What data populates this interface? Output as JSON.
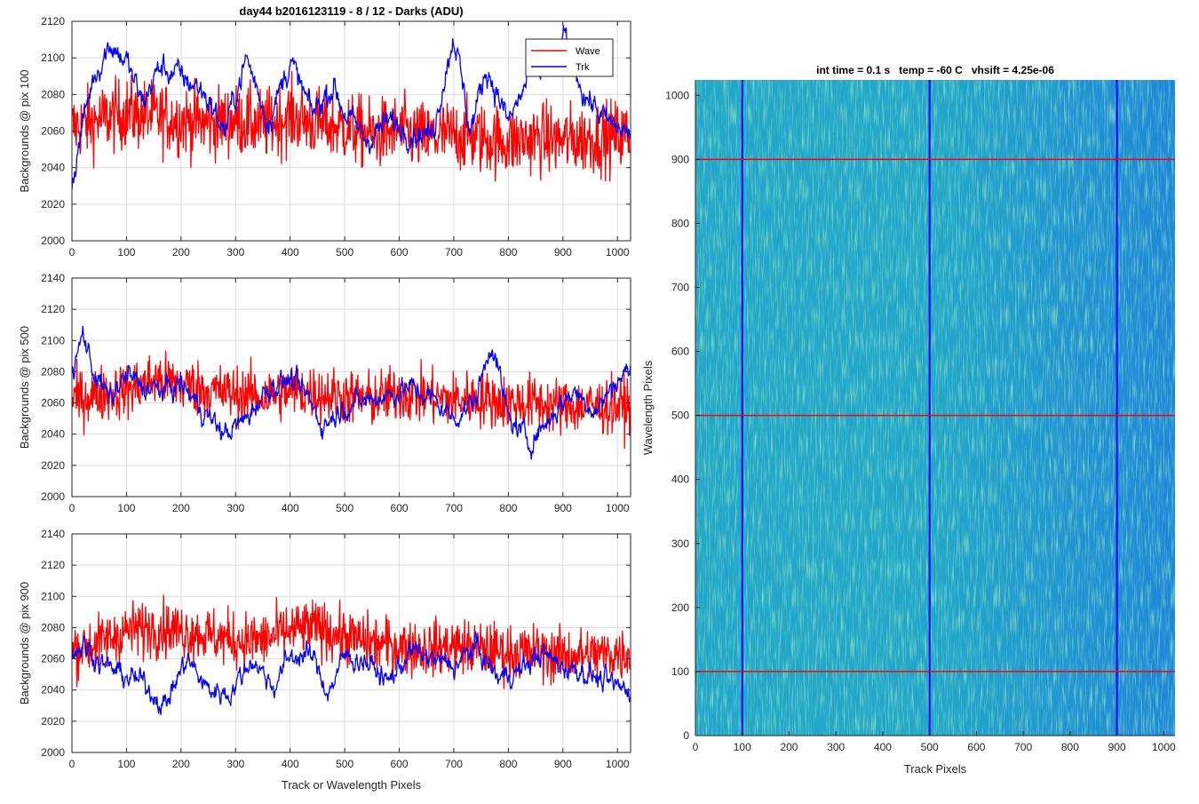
{
  "chart_data": [
    {
      "type": "line",
      "title": "day44 b2016123119 - 8 / 12 - Darks (ADU)",
      "ylabel": "Backgrounds @ pix 100",
      "xlabel": "",
      "xlim": [
        0,
        1024
      ],
      "ylim": [
        2000,
        2120
      ],
      "xticks": [
        0,
        100,
        200,
        300,
        400,
        500,
        600,
        700,
        800,
        900,
        1000
      ],
      "yticks": [
        2000,
        2020,
        2040,
        2060,
        2080,
        2100,
        2120
      ],
      "grid": true,
      "legend": "top-right",
      "series": [
        {
          "name": "Wave",
          "color": "#ff0000",
          "x": [
            0,
            50,
            100,
            150,
            200,
            250,
            300,
            350,
            400,
            450,
            500,
            550,
            600,
            650,
            700,
            750,
            800,
            850,
            900,
            950,
            1024
          ],
          "values": [
            2062,
            2066,
            2070,
            2068,
            2066,
            2064,
            2066,
            2063,
            2068,
            2064,
            2062,
            2058,
            2060,
            2056,
            2058,
            2056,
            2054,
            2056,
            2055,
            2056,
            2058
          ]
        },
        {
          "name": "Trk",
          "color": "#0000ff",
          "x": [
            0,
            20,
            40,
            70,
            100,
            130,
            160,
            200,
            240,
            280,
            320,
            360,
            400,
            440,
            480,
            500,
            540,
            580,
            620,
            660,
            700,
            730,
            760,
            800,
            840,
            880,
            900,
            940,
            980,
            1024
          ],
          "values": [
            2030,
            2065,
            2090,
            2108,
            2098,
            2075,
            2095,
            2090,
            2082,
            2060,
            2100,
            2065,
            2098,
            2070,
            2085,
            2070,
            2055,
            2065,
            2060,
            2058,
            2113,
            2060,
            2095,
            2065,
            2090,
            2095,
            2112,
            2080,
            2065,
            2058
          ]
        }
      ]
    },
    {
      "type": "line",
      "title": "",
      "ylabel": "Backgrounds @ pix 500",
      "xlabel": "",
      "xlim": [
        0,
        1024
      ],
      "ylim": [
        2000,
        2140
      ],
      "xticks": [
        0,
        100,
        200,
        300,
        400,
        500,
        600,
        700,
        800,
        900,
        1000
      ],
      "yticks": [
        2000,
        2020,
        2040,
        2060,
        2080,
        2100,
        2120,
        2140
      ],
      "grid": true,
      "series": [
        {
          "name": "Wave",
          "color": "#ff0000",
          "x": [
            0,
            50,
            100,
            150,
            200,
            250,
            300,
            350,
            400,
            450,
            500,
            550,
            600,
            650,
            700,
            750,
            800,
            850,
            900,
            950,
            1024
          ],
          "values": [
            2062,
            2066,
            2068,
            2075,
            2072,
            2068,
            2066,
            2064,
            2068,
            2066,
            2064,
            2062,
            2066,
            2064,
            2062,
            2063,
            2060,
            2060,
            2058,
            2058,
            2058
          ]
        },
        {
          "name": "Trk",
          "color": "#0000ff",
          "x": [
            0,
            20,
            40,
            70,
            100,
            130,
            170,
            200,
            240,
            280,
            320,
            360,
            400,
            430,
            460,
            500,
            540,
            580,
            620,
            660,
            700,
            740,
            770,
            800,
            840,
            880,
            920,
            960,
            1000,
            1024
          ],
          "values": [
            2075,
            2105,
            2080,
            2062,
            2078,
            2070,
            2068,
            2072,
            2055,
            2040,
            2050,
            2070,
            2075,
            2065,
            2045,
            2058,
            2062,
            2065,
            2070,
            2063,
            2050,
            2062,
            2100,
            2050,
            2035,
            2052,
            2068,
            2055,
            2075,
            2082
          ]
        }
      ]
    },
    {
      "type": "line",
      "title": "",
      "ylabel": "Backgrounds @ pix 900",
      "xlabel": "Track or Wavelength Pixels",
      "xlim": [
        0,
        1024
      ],
      "ylim": [
        2000,
        2140
      ],
      "xticks": [
        0,
        100,
        200,
        300,
        400,
        500,
        600,
        700,
        800,
        900,
        1000
      ],
      "yticks": [
        2000,
        2020,
        2040,
        2060,
        2080,
        2100,
        2120,
        2140
      ],
      "grid": true,
      "series": [
        {
          "name": "Wave",
          "color": "#ff0000",
          "x": [
            0,
            50,
            100,
            150,
            200,
            250,
            300,
            350,
            400,
            450,
            500,
            550,
            600,
            650,
            700,
            750,
            800,
            850,
            900,
            950,
            1024
          ],
          "values": [
            2066,
            2070,
            2078,
            2080,
            2078,
            2075,
            2072,
            2072,
            2078,
            2080,
            2074,
            2070,
            2068,
            2066,
            2068,
            2066,
            2064,
            2064,
            2062,
            2062,
            2064
          ]
        },
        {
          "name": "Trk",
          "color": "#0000ff",
          "x": [
            0,
            20,
            50,
            90,
            130,
            170,
            210,
            250,
            290,
            330,
            370,
            400,
            440,
            470,
            500,
            540,
            580,
            620,
            660,
            700,
            740,
            780,
            820,
            860,
            900,
            940,
            980,
            1024
          ],
          "values": [
            2062,
            2070,
            2058,
            2050,
            2045,
            2030,
            2060,
            2040,
            2038,
            2060,
            2042,
            2062,
            2062,
            2038,
            2062,
            2058,
            2045,
            2065,
            2060,
            2055,
            2068,
            2048,
            2052,
            2064,
            2055,
            2052,
            2044,
            2040
          ]
        }
      ]
    },
    {
      "type": "heatmap",
      "title": "int time = 0.1 s   temp = -60 C   vhsift = 4.25e-06",
      "xlabel": "Track Pixels",
      "ylabel": "Wavelength Pixels",
      "xlim": [
        0,
        1024
      ],
      "ylim": [
        0,
        1024
      ],
      "xticks": [
        0,
        100,
        200,
        300,
        400,
        500,
        600,
        700,
        800,
        900,
        1000
      ],
      "yticks": [
        0,
        100,
        200,
        300,
        400,
        500,
        600,
        700,
        800,
        900,
        1000
      ],
      "colormap": [
        "#1f86d8",
        "#23a6c9",
        "#4ebf9a"
      ],
      "vertical_markers": [
        100,
        500,
        900
      ],
      "vertical_marker_color": "#0000ff",
      "horizontal_markers": [
        100,
        500,
        900
      ],
      "horizontal_marker_color": "#ff0000"
    }
  ]
}
